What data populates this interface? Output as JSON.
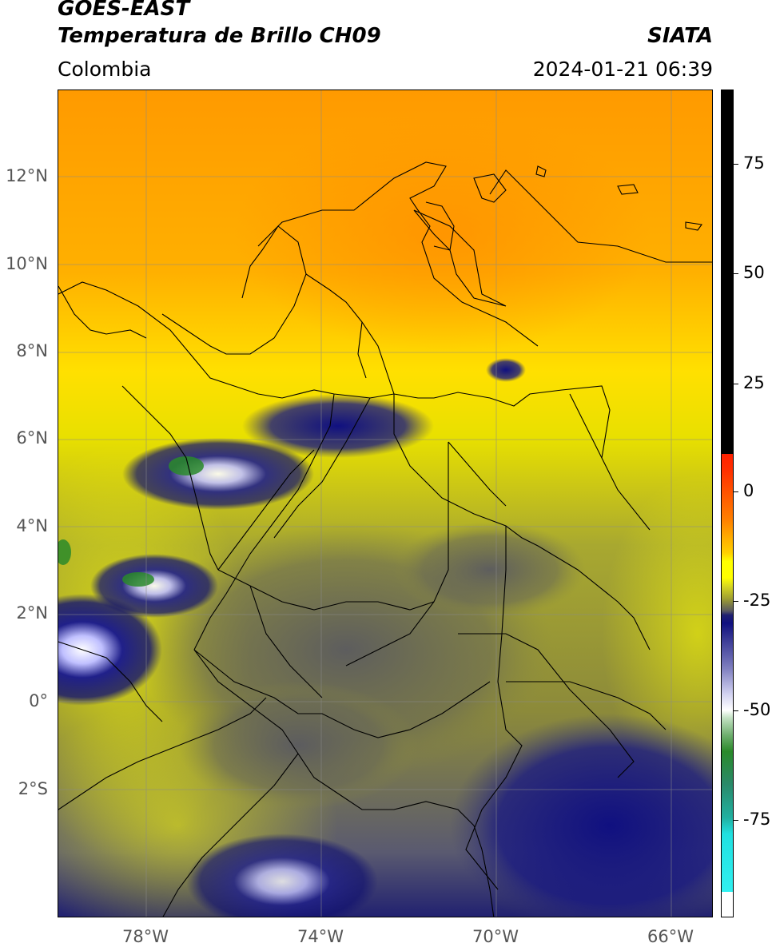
{
  "header": {
    "satellite": "GOES-EAST",
    "product": "Temperatura de Brillo CH09",
    "region": "Colombia",
    "brand": "SIATA",
    "datetime": "2024-01-21 06:39"
  },
  "map": {
    "lat_labels": [
      "12°N",
      "10°N",
      "8°N",
      "6°N",
      "4°N",
      "2°N",
      "0°",
      "2°S"
    ],
    "lon_labels": [
      "78°W",
      "74°W",
      "70°W",
      "66°W"
    ]
  },
  "colorbar": {
    "ticks": [
      "75",
      "50",
      "25",
      "0",
      "-25",
      "-50",
      "-75"
    ],
    "colors": {
      "black": "#000000",
      "red": "#ff2000",
      "orange": "#ff9a00",
      "yellow": "#ffff00",
      "olive": "#a0a030",
      "gray": "#5a5a5a",
      "navy": "#101080",
      "white": "#ffffff",
      "green": "#2a8a2a",
      "cyan": "#20e0e0"
    }
  }
}
